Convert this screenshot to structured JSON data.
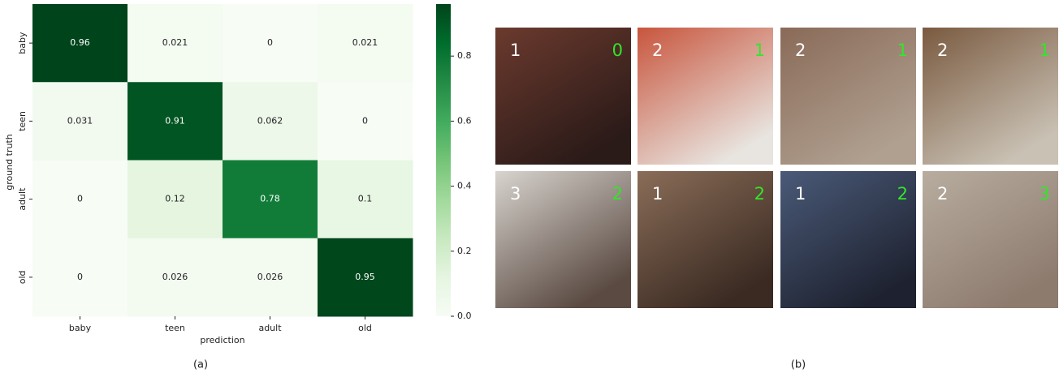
{
  "chart_data": {
    "type": "heatmap",
    "xlabel": "prediction",
    "ylabel": "ground truth",
    "x_categories": [
      "baby",
      "teen",
      "adult",
      "old"
    ],
    "y_categories": [
      "baby",
      "teen",
      "adult",
      "old"
    ],
    "values": [
      [
        0.96,
        0.021,
        0,
        0.021
      ],
      [
        0.031,
        0.91,
        0.062,
        0
      ],
      [
        0,
        0.12,
        0.78,
        0.1
      ],
      [
        0,
        0.026,
        0.026,
        0.95
      ]
    ],
    "colormap": [
      "#f7fcf5",
      "#e5f5e0",
      "#c7e9c0",
      "#a1d99b",
      "#74c476",
      "#41ab5d",
      "#238b45",
      "#006d2c",
      "#00441b"
    ],
    "clim": [
      0,
      0.96
    ],
    "cticks": [
      {
        "value": 0,
        "label": "0.0"
      },
      0.2,
      0.4,
      0.6,
      0.8
    ],
    "caption": "(a)"
  },
  "image_grid": {
    "caption": "(b)",
    "images": [
      {
        "left": 1,
        "right": 0
      },
      {
        "left": 2,
        "right": 1
      },
      {
        "left": 2,
        "right": 1
      },
      {
        "left": 2,
        "right": 1
      },
      {
        "left": 3,
        "right": 2
      },
      {
        "left": 1,
        "right": 2
      },
      {
        "left": 1,
        "right": 2
      },
      {
        "left": 2,
        "right": 3
      }
    ]
  }
}
